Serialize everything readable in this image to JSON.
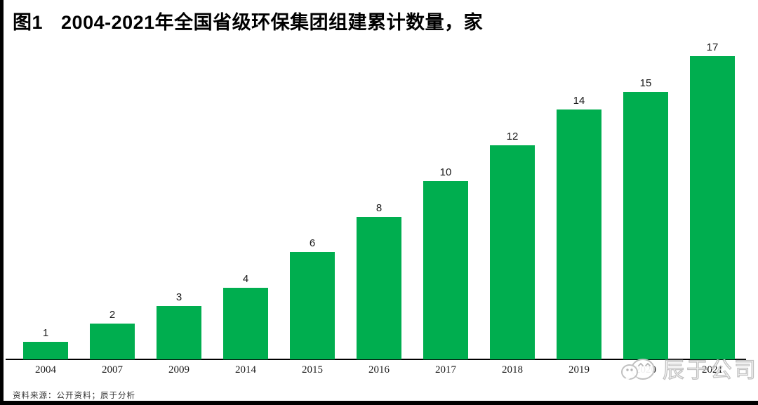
{
  "title": {
    "prefix": "图1",
    "text": "2004-2021年全国省级环保集团组建累计数量，家"
  },
  "footer": {
    "text": "资料来源：公开资料；辰于分析"
  },
  "watermark": {
    "icon": "wechat-icon",
    "text": "辰于公司"
  },
  "colors": {
    "bar": "#00AE4F",
    "axis": "#000000",
    "watermark": "#c0c0c0"
  },
  "chart_data": {
    "type": "bar",
    "title": "图1 2004-2021年全国省级环保集团组建累计数量，家",
    "categories": [
      "2004",
      "2007",
      "2009",
      "2014",
      "2015",
      "2016",
      "2017",
      "2018",
      "2019",
      "2020",
      "2021"
    ],
    "values": [
      1,
      2,
      3,
      4,
      6,
      8,
      10,
      12,
      14,
      15,
      17
    ],
    "xlabel": "",
    "ylabel": "",
    "unit": "家",
    "ylim": [
      0,
      17.5
    ],
    "grid": false,
    "legend": false,
    "data_labels": true,
    "bar_color": "#00AE4F"
  }
}
